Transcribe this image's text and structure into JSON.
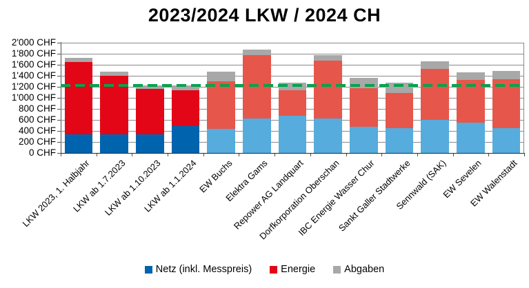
{
  "chart_data": {
    "type": "bar",
    "stacked": true,
    "title": "2023/2024 LKW / 2024 CH",
    "xlabel": "",
    "ylabel": "",
    "ylim": [
      0,
      2000
    ],
    "ytick_step": 200,
    "ytick_labels": [
      "2'000 CHF",
      "1'800 CHF",
      "1'600 CHF",
      "1'400 CHF",
      "1'200 CHF",
      "1'000 CHF",
      "800 CHF",
      "600 CHF",
      "400 CHF",
      "200 CHF",
      "0 CHF"
    ],
    "grid": true,
    "categories": [
      "LKW 2023, 1. Halbjahr",
      "LKW ab 1.7.2023",
      "LKW ab 1.10.2023",
      "LKW ab 1.1.2024",
      "EW Buchs",
      "Elektra Gams",
      "Repower AG Landquart",
      "Dorfkorporation Oberschan",
      "IBC Energie Wasser Chur",
      "Sankt Galler Stadtwerke",
      "Sennwald (SAK)",
      "EW Sevelen",
      "EW Walenstadt"
    ],
    "category_groups": [
      "lkw",
      "lkw",
      "lkw",
      "lkw",
      "ch",
      "ch",
      "ch",
      "ch",
      "ch",
      "ch",
      "ch",
      "ch",
      "ch"
    ],
    "series": [
      {
        "name": "Netz (inkl. Messpreis)",
        "values": [
          335,
          335,
          335,
          485,
          440,
          620,
          670,
          620,
          480,
          455,
          595,
          545,
          455
        ]
      },
      {
        "name": "Energie",
        "values": [
          1315,
          1070,
          825,
          650,
          865,
          1150,
          465,
          1050,
          690,
          630,
          925,
          775,
          880
        ]
      },
      {
        "name": "Abgaben",
        "values": [
          70,
          65,
          65,
          90,
          175,
          110,
          145,
          105,
          190,
          195,
          145,
          145,
          150
        ]
      }
    ],
    "series_colors": {
      "netz_lkw": "#0063AE",
      "netz_ch": "#55ACDD",
      "energie_lkw": "#E30617",
      "energie_ch": "#E6564A",
      "abgaben": "#A8A8A8"
    },
    "reference_line": {
      "value": 1220,
      "color": "#00A44D",
      "style": "dashed"
    },
    "legend_position": "bottom",
    "legend": [
      {
        "label": "Netz (inkl. Messpreis)",
        "color": "#0063AE"
      },
      {
        "label": "Energie",
        "color": "#E30617"
      },
      {
        "label": "Abgaben",
        "color": "#A8A8A8"
      }
    ]
  }
}
